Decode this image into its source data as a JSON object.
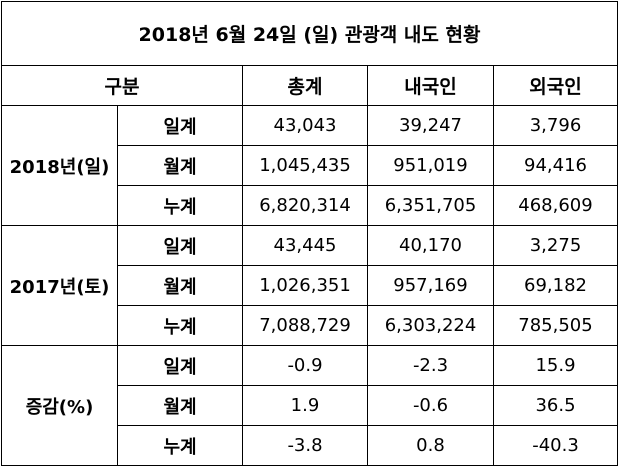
{
  "title": "2018년 6월 24일 (일) 관광객 내도 현황",
  "headers": {
    "category": "구분",
    "total": "총계",
    "domestic": "내국인",
    "foreign": "외국인"
  },
  "groups": [
    {
      "label": "2018년(일)",
      "rows": [
        {
          "sub": "일계",
          "total": "43,043",
          "domestic": "39,247",
          "foreign": "3,796"
        },
        {
          "sub": "월계",
          "total": "1,045,435",
          "domestic": "951,019",
          "foreign": "94,416"
        },
        {
          "sub": "누계",
          "total": "6,820,314",
          "domestic": "6,351,705",
          "foreign": "468,609"
        }
      ]
    },
    {
      "label": "2017년(토)",
      "rows": [
        {
          "sub": "일계",
          "total": "43,445",
          "domestic": "40,170",
          "foreign": "3,275"
        },
        {
          "sub": "월계",
          "total": "1,026,351",
          "domestic": "957,169",
          "foreign": "69,182"
        },
        {
          "sub": "누계",
          "total": "7,088,729",
          "domestic": "6,303,224",
          "foreign": "785,505"
        }
      ]
    },
    {
      "label": "증감(%)",
      "rows": [
        {
          "sub": "일계",
          "total": "-0.9",
          "domestic": "-2.3",
          "foreign": "15.9"
        },
        {
          "sub": "월계",
          "total": "1.9",
          "domestic": "-0.6",
          "foreign": "36.5"
        },
        {
          "sub": "누계",
          "total": "-3.8",
          "domestic": "0.8",
          "foreign": "-40.3"
        }
      ]
    }
  ]
}
